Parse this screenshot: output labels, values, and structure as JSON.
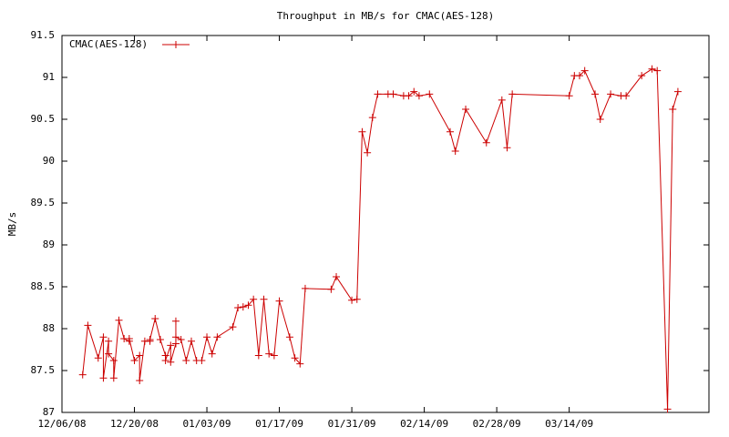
{
  "chart_data": {
    "type": "line",
    "title": "Throughput in MB/s for CMAC(AES-128)",
    "y_label": "MB/s",
    "x": [
      "12/10/08",
      "12/11/08",
      "12/13/08",
      "12/14/08",
      "12/14/08",
      "12/15/08",
      "12/15/08",
      "12/16/08",
      "12/16/08",
      "12/17/08",
      "12/18/08",
      "12/19/08",
      "12/19/08",
      "12/20/08",
      "12/21/08",
      "12/21/08",
      "12/22/08",
      "12/23/08",
      "12/23/08",
      "12/24/08",
      "12/25/08",
      "12/26/08",
      "12/26/08",
      "12/27/08",
      "12/27/08",
      "12/28/08",
      "12/28/08",
      "12/28/08",
      "12/29/08",
      "12/30/08",
      "12/31/08",
      "01/01/09",
      "01/02/09",
      "01/03/09",
      "01/04/09",
      "01/05/09",
      "01/08/09",
      "01/09/09",
      "01/10/09",
      "01/11/09",
      "01/12/09",
      "01/13/09",
      "01/14/09",
      "01/15/09",
      "01/16/09",
      "01/17/09",
      "01/19/09",
      "01/20/09",
      "01/21/09",
      "01/22/09",
      "01/27/09",
      "01/28/09",
      "01/31/09",
      "02/01/09",
      "02/02/09",
      "02/03/09",
      "02/04/09",
      "02/05/09",
      "02/07/09",
      "02/08/09",
      "02/10/09",
      "02/11/09",
      "02/12/09",
      "02/13/09",
      "02/15/09",
      "02/19/09",
      "02/20/09",
      "02/22/09",
      "02/26/09",
      "03/01/09",
      "03/02/09",
      "03/03/09",
      "03/14/09",
      "03/15/09",
      "03/16/09",
      "03/17/09",
      "03/19/09",
      "03/20/09",
      "03/22/09",
      "03/24/09",
      "03/25/09",
      "03/28/09",
      "03/30/09",
      "03/31/09",
      "04/02/09",
      "04/03/09",
      "04/04/09"
    ],
    "series": [
      {
        "name": "CMAC(AES-128)",
        "color": "#cc0000",
        "values": [
          87.45,
          88.04,
          87.65,
          87.9,
          87.41,
          87.85,
          87.7,
          87.62,
          87.41,
          88.1,
          87.88,
          87.85,
          87.88,
          87.62,
          87.68,
          87.38,
          87.85,
          87.85,
          87.87,
          88.12,
          87.87,
          87.68,
          87.62,
          87.8,
          87.6,
          87.82,
          88.09,
          87.9,
          87.87,
          87.62,
          87.85,
          87.62,
          87.62,
          87.9,
          87.7,
          87.9,
          88.02,
          88.25,
          88.26,
          88.28,
          88.35,
          87.68,
          88.35,
          87.7,
          87.68,
          88.33,
          87.9,
          87.65,
          87.58,
          88.48,
          88.47,
          88.62,
          88.34,
          88.35,
          90.35,
          90.1,
          90.52,
          90.8,
          90.8,
          90.8,
          90.78,
          90.78,
          90.83,
          90.78,
          90.8,
          90.35,
          90.12,
          90.62,
          90.22,
          90.73,
          90.16,
          90.8,
          90.78,
          91.02,
          91.02,
          91.08,
          90.8,
          90.5,
          90.8,
          90.78,
          90.78,
          91.02,
          91.1,
          91.08,
          87.04,
          90.62,
          90.83
        ]
      }
    ],
    "xlim": [
      "12/06/08",
      "04/10/09"
    ],
    "xticks": [
      "12/06/08",
      "12/20/08",
      "01/03/09",
      "01/17/09",
      "01/31/09",
      "02/14/09",
      "02/28/09",
      "03/14/09"
    ],
    "ylim": [
      87,
      91.5
    ],
    "yticks": [
      87,
      87.5,
      88,
      88.5,
      89,
      89.5,
      90,
      90.5,
      91,
      91.5
    ],
    "grid": false,
    "legend": "top-left"
  }
}
